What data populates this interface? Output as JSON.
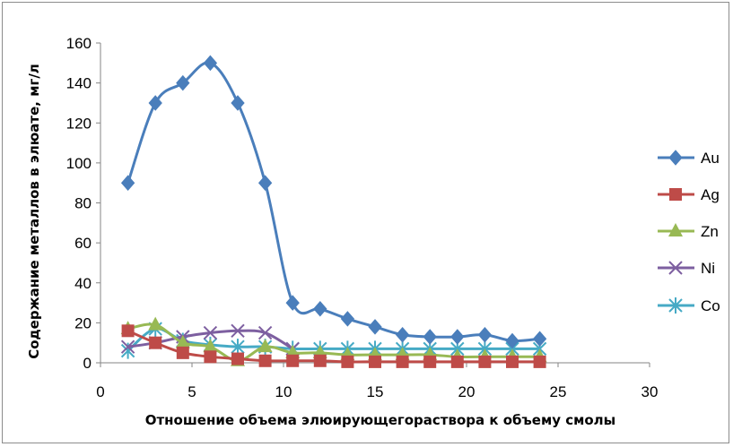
{
  "chart_data": {
    "type": "line",
    "title": "",
    "xlabel": "Отношение объема элюирующегораствора к объему смолы",
    "ylabel": "Содержание металлов в элюате, мг/л",
    "xlim": [
      0,
      30
    ],
    "ylim": [
      0,
      160
    ],
    "x_ticks": [
      0,
      5,
      10,
      15,
      20,
      25,
      30
    ],
    "y_ticks": [
      0,
      20,
      40,
      60,
      80,
      100,
      120,
      140,
      160
    ],
    "grid": false,
    "legend_position": "right",
    "series": [
      {
        "name": "Au",
        "color": "#4a7ebb",
        "marker": "diamond",
        "x": [
          1.5,
          3,
          4.5,
          6,
          7.5,
          9,
          10.5,
          12,
          13.5,
          15,
          16.5,
          18,
          19.5,
          21,
          22.5,
          24
        ],
        "y": [
          90,
          130,
          140,
          150,
          130,
          90,
          30,
          27,
          22,
          18,
          14,
          13,
          13,
          14,
          11,
          12
        ]
      },
      {
        "name": "Ag",
        "color": "#be4b48",
        "marker": "square",
        "x": [
          1.5,
          3,
          4.5,
          6,
          7.5,
          9,
          10.5,
          12,
          13.5,
          15,
          16.5,
          18,
          19.5,
          21,
          22.5,
          24
        ],
        "y": [
          16,
          10,
          5,
          3,
          2,
          1,
          1,
          1,
          0.5,
          0.5,
          0.5,
          0.5,
          0.5,
          0.5,
          0.5,
          0.5
        ]
      },
      {
        "name": "Zn",
        "color": "#98b954",
        "marker": "triangle",
        "x": [
          1.5,
          3,
          4.5,
          6,
          7.5,
          9,
          10.5,
          12,
          13.5,
          15,
          16.5,
          18,
          19.5,
          21,
          22.5,
          24
        ],
        "y": [
          17,
          19,
          10,
          8,
          1,
          8,
          5,
          5,
          4,
          4,
          4,
          4,
          3,
          3,
          3,
          3
        ]
      },
      {
        "name": "Ni",
        "color": "#7d5fa0",
        "marker": "x",
        "x": [
          1.5,
          3,
          4.5,
          6,
          7.5,
          9,
          10.5
        ],
        "y": [
          8,
          10,
          13,
          15,
          16,
          15,
          7
        ]
      },
      {
        "name": "Co",
        "color": "#46aac5",
        "marker": "star",
        "x": [
          1.5,
          3,
          4.5,
          6,
          7.5,
          9,
          10.5,
          12,
          13.5,
          15,
          16.5,
          18,
          19.5,
          21,
          22.5,
          24
        ],
        "y": [
          6,
          17,
          11,
          9,
          8,
          8,
          7,
          7,
          7,
          7,
          7,
          7,
          7,
          7,
          7,
          7
        ]
      }
    ]
  }
}
